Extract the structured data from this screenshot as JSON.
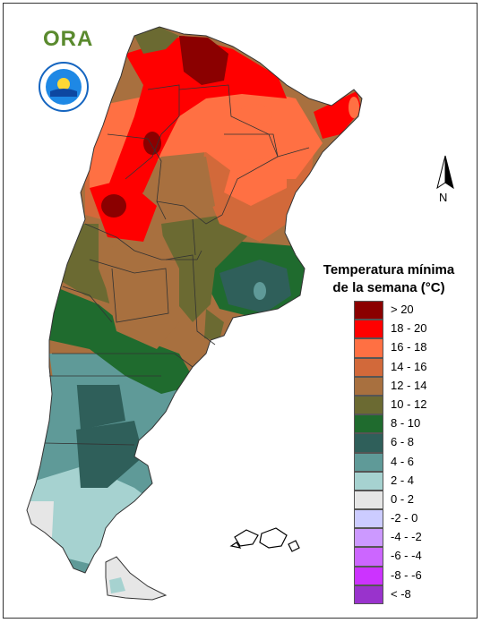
{
  "header": {
    "logo_text": "ORA",
    "seal_icon": "seal-icon"
  },
  "north_arrow": {
    "label": "N",
    "icon": "north-arrow-icon"
  },
  "legend": {
    "title_line1": "Temperatura mínima",
    "title_line2": "de la semana (°C)",
    "items": [
      {
        "label": "> 20",
        "color": "#8b0000"
      },
      {
        "label": "18 - 20",
        "color": "#ff0000"
      },
      {
        "label": "16 - 18",
        "color": "#ff7043"
      },
      {
        "label": "14 - 16",
        "color": "#d2693a"
      },
      {
        "label": "12 - 14",
        "color": "#a8703f"
      },
      {
        "label": "10 - 12",
        "color": "#6b6a32"
      },
      {
        "label": "8 - 10",
        "color": "#1f6b2e"
      },
      {
        "label": "6 - 8",
        "color": "#2f5f5a"
      },
      {
        "label": "4 - 6",
        "color": "#5f9a98"
      },
      {
        "label": "2 - 4",
        "color": "#a6d2d0"
      },
      {
        "label": "0 - 2",
        "color": "#e6e6e6"
      },
      {
        "label": "-2 - 0",
        "color": "#ccccff"
      },
      {
        "label": "-4 - -2",
        "color": "#cc99ff"
      },
      {
        "label": "-6 - -4",
        "color": "#cc66ff"
      },
      {
        "label": "-8 - -6",
        "color": "#cc33ff"
      },
      {
        "label": "< -8",
        "color": "#9933cc"
      }
    ]
  }
}
